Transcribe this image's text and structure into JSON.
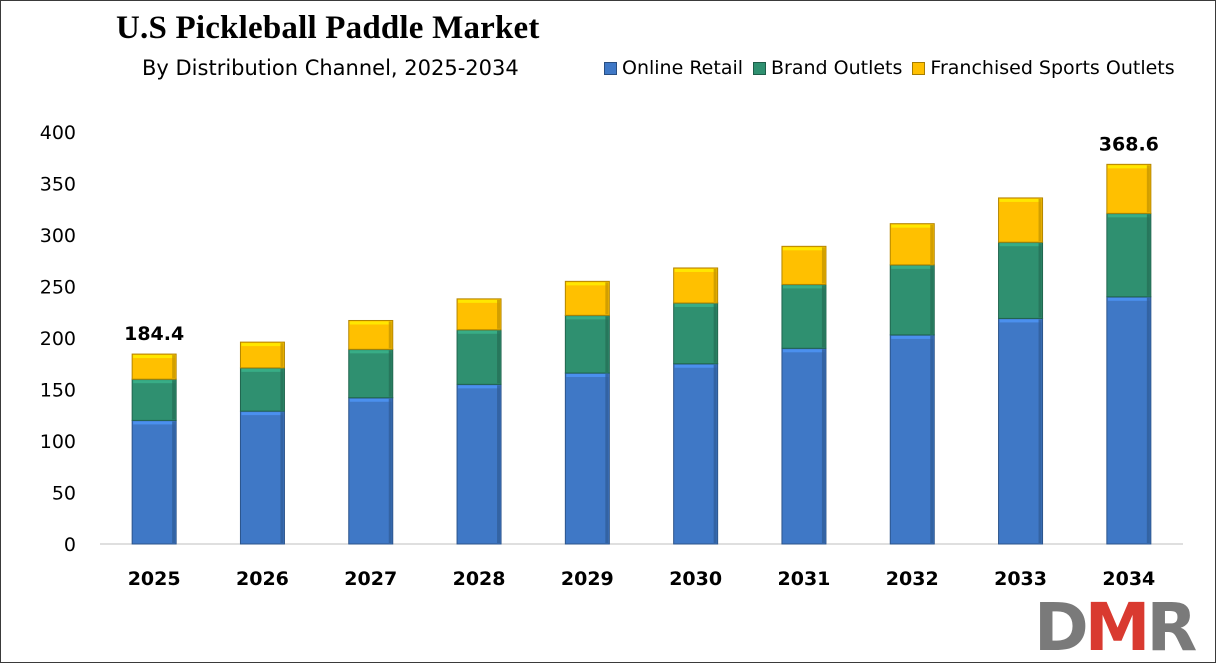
{
  "chart_data": {
    "type": "bar",
    "stacked": true,
    "title": "U.S Pickleball Paddle Market",
    "subtitle": "By Distribution Channel, 2025-2034",
    "categories": [
      "2025",
      "2026",
      "2027",
      "2028",
      "2029",
      "2030",
      "2031",
      "2032",
      "2033",
      "2034"
    ],
    "series": [
      {
        "name": "Online Retail",
        "color": "#3f78c6",
        "values": [
          120,
          129,
          142,
          155,
          166,
          175,
          190,
          203,
          219,
          240
        ]
      },
      {
        "name": "Brand Outlets",
        "color": "#2f9070",
        "values": [
          40,
          42,
          47,
          53,
          56,
          59,
          62,
          68,
          74,
          81
        ]
      },
      {
        "name": "Franchised Sports Outlets",
        "color": "#ffc000",
        "values": [
          24.4,
          25,
          28,
          30,
          33,
          34,
          37,
          40,
          43,
          47.6
        ]
      }
    ],
    "ylim": [
      0,
      400
    ],
    "yticks": [
      0,
      50,
      100,
      150,
      200,
      250,
      300,
      350,
      400
    ],
    "data_labels": [
      {
        "category": "2025",
        "text": "184.4"
      },
      {
        "category": "2034",
        "text": "368.6"
      }
    ],
    "legend_position": "top-right",
    "grid": false
  },
  "logo": {
    "part1": "D",
    "part2": "M",
    "part3": "R"
  }
}
